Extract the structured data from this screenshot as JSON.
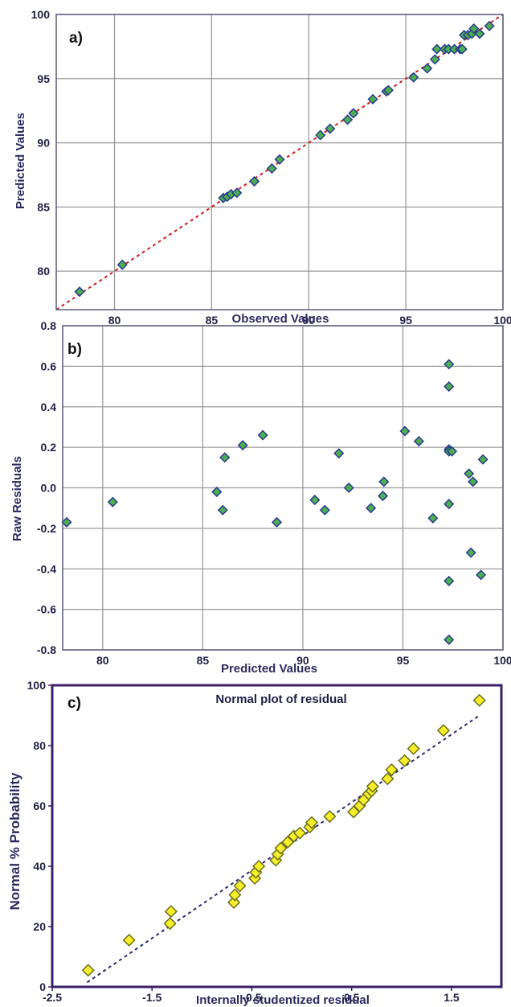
{
  "chart_data": [
    {
      "id": "a",
      "type": "scatter",
      "panel_label": "a)",
      "title": "",
      "xlabel": "Observed Values",
      "ylabel": "Predicted Values",
      "xlim": [
        77,
        100
      ],
      "ylim": [
        77,
        100
      ],
      "xticks": [
        80,
        85,
        90,
        95,
        100
      ],
      "yticks": [
        80,
        85,
        90,
        95,
        100
      ],
      "grid": true,
      "marker": "diamond",
      "marker_color": "#4caf50",
      "marker_edge": "#2b3a8f",
      "reference_line": {
        "style": "dashed",
        "color": "#cc2222",
        "from": [
          77,
          77
        ],
        "to": [
          100,
          100
        ]
      },
      "x": [
        78.2,
        80.4,
        85.6,
        85.8,
        86.0,
        86.3,
        87.2,
        88.1,
        88.5,
        90.6,
        91.1,
        92.0,
        92.3,
        93.3,
        94.0,
        94.1,
        95.4,
        96.1,
        96.5,
        96.6,
        97.0,
        97.2,
        97.5,
        97.8,
        97.9,
        98.0,
        98.2,
        98.4,
        98.5,
        98.8,
        99.3
      ],
      "y": [
        78.4,
        80.5,
        85.7,
        85.8,
        86.0,
        86.1,
        87.0,
        88.0,
        88.7,
        90.6,
        91.1,
        91.8,
        92.3,
        93.4,
        94.0,
        94.1,
        95.1,
        95.8,
        96.5,
        97.3,
        97.3,
        97.3,
        97.3,
        97.3,
        97.3,
        98.4,
        98.4,
        98.5,
        98.9,
        98.5,
        99.1
      ]
    },
    {
      "id": "b",
      "type": "scatter",
      "panel_label": "b)",
      "title": "",
      "xlabel": "Predicted Values",
      "ylabel": "Raw Residuals",
      "xlim": [
        78,
        100
      ],
      "ylim": [
        -0.8,
        0.8
      ],
      "xticks": [
        80,
        85,
        90,
        95,
        100
      ],
      "yticks": [
        -0.8,
        -0.6,
        -0.4,
        -0.2,
        0.0,
        0.2,
        0.4,
        0.6,
        0.8
      ],
      "ytick_labels": [
        "-0.8",
        "-0.6",
        "-0.4",
        "-0.2",
        "0.0",
        "0.2",
        "0.4",
        "0.6",
        "0.8"
      ],
      "grid": true,
      "marker": "diamond",
      "marker_color": "#4caf50",
      "marker_edge": "#2b3a8f",
      "x": [
        78.2,
        80.5,
        85.7,
        86.0,
        86.1,
        87.0,
        88.0,
        88.7,
        90.6,
        91.1,
        91.8,
        92.3,
        93.4,
        94.0,
        94.05,
        95.1,
        95.8,
        96.5,
        97.3,
        97.3,
        97.3,
        97.3,
        97.3,
        97.3,
        97.3,
        97.45,
        98.3,
        98.4,
        98.5,
        98.9,
        99.0
      ],
      "y": [
        -0.17,
        -0.07,
        -0.02,
        -0.11,
        0.15,
        0.21,
        0.26,
        -0.17,
        -0.06,
        -0.11,
        0.17,
        0.0,
        -0.1,
        -0.04,
        0.03,
        0.28,
        0.23,
        -0.15,
        0.61,
        0.5,
        0.19,
        -0.08,
        -0.46,
        -0.75,
        0.18,
        0.18,
        0.07,
        -0.32,
        0.03,
        -0.43,
        0.14
      ]
    },
    {
      "id": "c",
      "type": "scatter",
      "panel_label": "c)",
      "title": "Normal plot of residual",
      "xlabel": "Internally studentized residual",
      "ylabel": "Normal % Probability",
      "xlim": [
        -2.5,
        2.0
      ],
      "ylim": [
        0,
        100
      ],
      "xticks": [
        -2.5,
        -1.5,
        -0.5,
        0.5,
        1.5
      ],
      "yticks": [
        0,
        20,
        40,
        60,
        80,
        100
      ],
      "grid": false,
      "marker": "diamond",
      "marker_color": "#f5ee2a",
      "marker_edge": "#6b6b1a",
      "reference_line": {
        "style": "dashed",
        "color": "#2b2b6e",
        "from": [
          -2.15,
          1.5
        ],
        "to": [
          1.78,
          90
        ]
      },
      "x": [
        -2.14,
        -1.73,
        -1.32,
        -1.31,
        -0.68,
        -0.67,
        -0.62,
        -0.47,
        -0.46,
        -0.43,
        -0.26,
        -0.24,
        -0.21,
        -0.14,
        -0.08,
        -0.02,
        0.08,
        0.1,
        0.28,
        0.52,
        0.58,
        0.62,
        0.67,
        0.7,
        0.71,
        0.86,
        0.9,
        1.03,
        1.12,
        1.42,
        1.78
      ],
      "y": [
        5.5,
        15.5,
        21,
        25,
        28,
        30.5,
        33.5,
        36,
        38,
        40,
        42,
        44,
        46,
        48,
        50,
        51,
        53,
        54.5,
        56.5,
        58,
        60,
        62,
        64,
        65,
        66.5,
        69,
        72,
        75,
        79,
        85,
        95
      ]
    }
  ]
}
